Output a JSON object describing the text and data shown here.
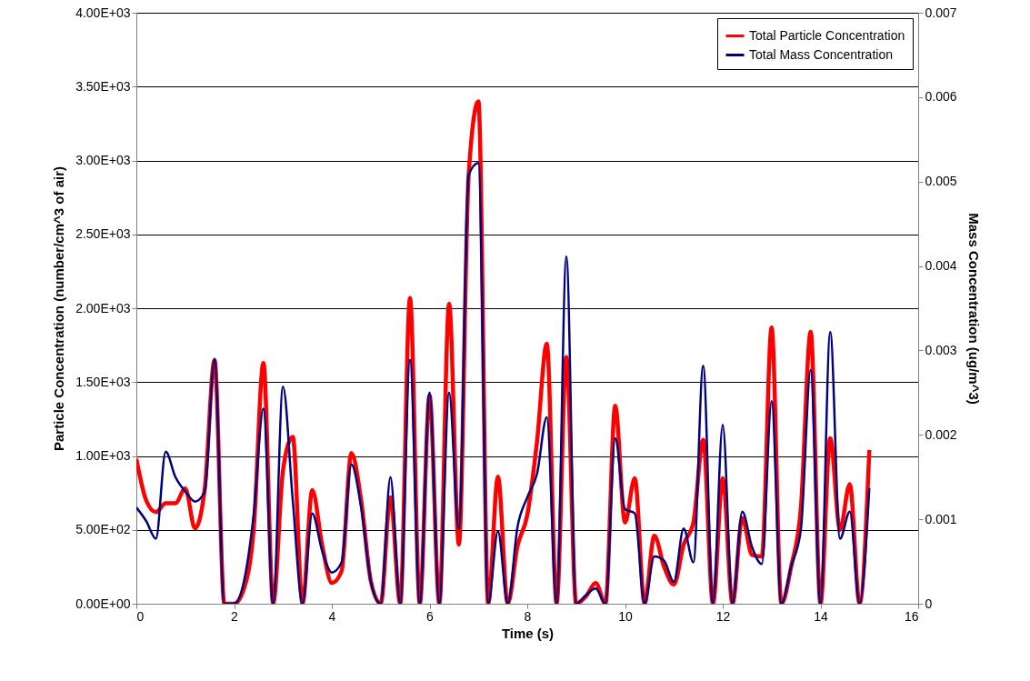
{
  "chart_data": {
    "type": "line",
    "xlabel": "Time (s)",
    "ylabel": "Particle Concentration (number/cm^3 of air)",
    "y2label": "Mass Concentration (ug/m^3)",
    "x": [
      0,
      0.2,
      0.4,
      0.6,
      0.8,
      1,
      1.2,
      1.4,
      1.6,
      1.8,
      2,
      2.2,
      2.4,
      2.6,
      2.8,
      3,
      3.2,
      3.4,
      3.6,
      3.8,
      4,
      4.2,
      4.4,
      4.6,
      4.8,
      5,
      5.2,
      5.4,
      5.6,
      5.8,
      6,
      6.2,
      6.4,
      6.6,
      6.8,
      7,
      7.2,
      7.4,
      7.6,
      7.8,
      8,
      8.2,
      8.4,
      8.6,
      8.8,
      9,
      9.2,
      9.4,
      9.6,
      9.8,
      10,
      10.2,
      10.4,
      10.6,
      10.8,
      11,
      11.2,
      11.4,
      11.6,
      11.8,
      12,
      12.2,
      12.4,
      12.6,
      12.8,
      13,
      13.2,
      13.4,
      13.6,
      13.8,
      14,
      14.2,
      14.4,
      14.6,
      14.8,
      15
    ],
    "series": [
      {
        "name": "Total Particle Concentration",
        "color": "#ff0000",
        "values": [
          980,
          700,
          620,
          680,
          680,
          780,
          510,
          780,
          1650,
          0,
          0,
          100,
          500,
          1630,
          0,
          900,
          1130,
          0,
          770,
          400,
          140,
          220,
          1020,
          700,
          150,
          0,
          720,
          0,
          2070,
          0,
          1410,
          0,
          2030,
          400,
          2900,
          3400,
          0,
          860,
          0,
          390,
          600,
          1100,
          1760,
          0,
          1670,
          0,
          50,
          140,
          0,
          1340,
          550,
          850,
          0,
          460,
          250,
          130,
          400,
          550,
          1110,
          0,
          850,
          0,
          580,
          330,
          320,
          1870,
          0,
          250,
          650,
          1840,
          0,
          1120,
          500,
          810,
          0,
          1040
        ]
      },
      {
        "name": "Total Mass Concentration",
        "color": "#000080",
        "axis": "y2",
        "values": [
          0.00114,
          0.00098,
          0.00077,
          0.0018,
          0.0015,
          0.00133,
          0.00121,
          0.00133,
          0.0029,
          0,
          0,
          0.00026,
          0.00105,
          0.00231,
          0,
          0.00257,
          0.00123,
          0,
          0.00107,
          0.00063,
          0.00037,
          0.00049,
          0.00165,
          0.00114,
          0.00026,
          0,
          0.0015,
          0,
          0.00289,
          0,
          0.0025,
          0,
          0.0025,
          0.00088,
          0.00508,
          0.00522,
          0,
          0.00086,
          0,
          0.00091,
          0.00126,
          0.00154,
          0.00221,
          0,
          0.00411,
          0,
          0.0001,
          0.00018,
          0,
          0.00196,
          0.00112,
          0.00107,
          0,
          0.00056,
          0.00051,
          0.00026,
          0.00089,
          0.00049,
          0.00282,
          0,
          0.00212,
          0,
          0.00109,
          0.00067,
          0.00047,
          0.0024,
          0,
          0.00044,
          0.00088,
          0.00277,
          0,
          0.00322,
          0.00077,
          0.00109,
          0,
          0.00137
        ]
      }
    ],
    "xlim": [
      0,
      16
    ],
    "xticks": [
      0,
      2,
      4,
      6,
      8,
      10,
      12,
      14,
      16
    ],
    "ylim": [
      0,
      4000
    ],
    "yticks": [
      {
        "value": 0,
        "label": "0.00E+00"
      },
      {
        "value": 500,
        "label": "5.00E+02"
      },
      {
        "value": 1000,
        "label": "1.00E+03"
      },
      {
        "value": 1500,
        "label": "1.50E+03"
      },
      {
        "value": 2000,
        "label": "2.00E+03"
      },
      {
        "value": 2500,
        "label": "2.50E+03"
      },
      {
        "value": 3000,
        "label": "3.00E+03"
      },
      {
        "value": 3500,
        "label": "3.50E+03"
      },
      {
        "value": 4000,
        "label": "4.00E+03"
      }
    ],
    "y2lim": [
      0,
      0.007
    ],
    "y2ticks": [
      0,
      0.001,
      0.002,
      0.003,
      0.004,
      0.005,
      0.006,
      0.007
    ],
    "grid": "y",
    "legend": "top right",
    "marker": "none",
    "line_style": "solid"
  }
}
